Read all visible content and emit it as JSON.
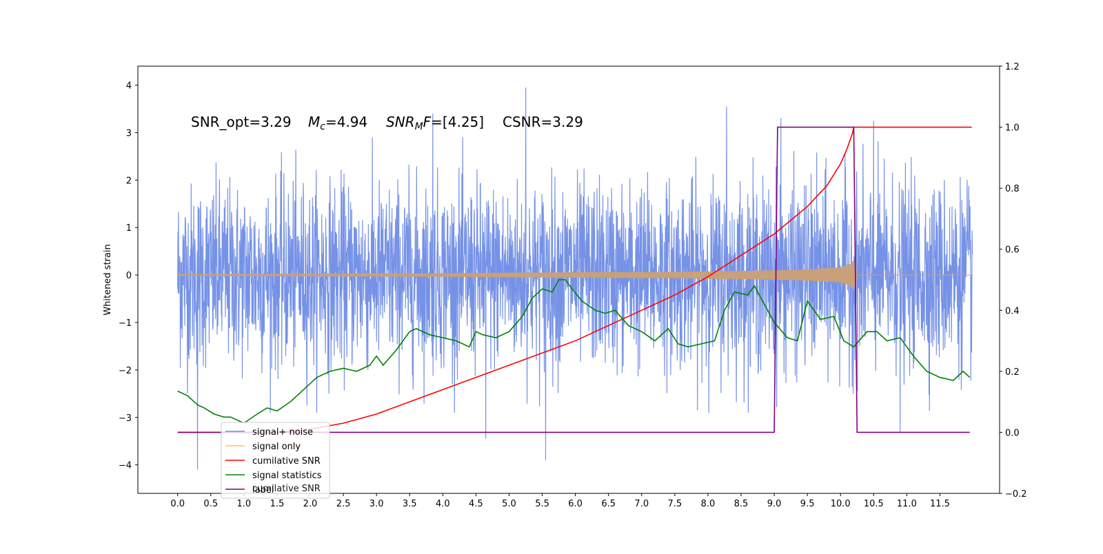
{
  "chart_data": {
    "type": "line",
    "annotation": {
      "snr_opt": "SNR_opt=3.29",
      "mc_symbol": "M",
      "mc_sub": "c",
      "mc_value": "=4.94",
      "snrmf_symbol": "SNR",
      "snrmf_sub": "M",
      "snrmf_symbol2": "F",
      "snrmf_value": "=[4.25]",
      "csnr": "CSNR=3.29"
    },
    "ylabel_left": "Whitened strain",
    "xlabel": "",
    "xlim": [
      -0.6,
      12.4
    ],
    "ylim_left": [
      -4.6,
      4.4
    ],
    "ylim_right": [
      -0.2,
      1.2
    ],
    "x_ticks": [
      "0.0",
      "0.5",
      "1.0",
      "1.5",
      "2.0",
      "2.5",
      "3.0",
      "3.5",
      "4.0",
      "4.5",
      "5.0",
      "5.5",
      "6.0",
      "6.5",
      "7.0",
      "7.5",
      "8.0",
      "8.5",
      "9.0",
      "9.5",
      "10.0",
      "10.5",
      "11.0",
      "11.5"
    ],
    "y_left_ticks": [
      "4",
      "3",
      "2",
      "1",
      "0",
      "−1",
      "−2",
      "−3",
      "−4"
    ],
    "y_right_ticks": [
      "1.2",
      "1.0",
      "0.8",
      "0.6",
      "0.4",
      "0.2",
      "0.0",
      "−0.2"
    ],
    "legend": {
      "position": "lower-left",
      "entries": [
        {
          "label": "signal+ noise",
          "color": "#6f8ce6"
        },
        {
          "label": "signal only",
          "color": "#ffc46b"
        },
        {
          "label": "cumilative SNR",
          "color": "#ff0000"
        },
        {
          "label": "signal statistics",
          "color": "#008000"
        },
        {
          "label": "label",
          "color": "#800080"
        }
      ],
      "overlapped_text": "cumilative SNR"
    },
    "series": [
      {
        "name": "signal+ noise",
        "axis": "left",
        "color": "#6f8ce6",
        "x": [
          0.0,
          11.99
        ],
        "envelope_min": [
          -4.1,
          -3.9
        ],
        "envelope_max": [
          3.95,
          3.3
        ],
        "note_values": "noise band approx between -2.5 and 2.5 with spikes up to 3.95 (x=5.25) and down to -4.1 (x=0.3)"
      },
      {
        "name": "signal only",
        "axis": "left",
        "color": "#c8a07a",
        "x": [
          0.0,
          2.0,
          4.0,
          6.0,
          7.5,
          8.5,
          9.0,
          9.5,
          10.0,
          10.15,
          10.2,
          10.25,
          12.0
        ],
        "amp": [
          0.01,
          0.02,
          0.03,
          0.05,
          0.06,
          0.08,
          0.09,
          0.11,
          0.15,
          0.22,
          0.3,
          0.0,
          0.0
        ]
      },
      {
        "name": "cumilative SNR",
        "axis": "right",
        "color": "#ff0000",
        "x": [
          0.0,
          1.0,
          1.5,
          2.0,
          2.5,
          3.0,
          3.5,
          4.0,
          4.5,
          5.0,
          5.5,
          6.0,
          6.5,
          7.0,
          7.5,
          8.0,
          8.5,
          9.0,
          9.5,
          9.8,
          10.0,
          10.1,
          10.18,
          10.2,
          11.98
        ],
        "values": [
          0.0,
          0.0,
          0.0,
          0.01,
          0.03,
          0.06,
          0.1,
          0.14,
          0.18,
          0.22,
          0.26,
          0.3,
          0.35,
          0.4,
          0.45,
          0.51,
          0.58,
          0.65,
          0.74,
          0.81,
          0.88,
          0.93,
          0.98,
          1.0,
          1.0
        ]
      },
      {
        "name": "signal statistics",
        "axis": "right",
        "color": "#008000",
        "x": [
          0.0,
          0.15,
          0.3,
          0.4,
          0.55,
          0.7,
          0.8,
          1.0,
          1.2,
          1.35,
          1.5,
          1.7,
          1.9,
          2.1,
          2.3,
          2.5,
          2.7,
          2.9,
          3.0,
          3.1,
          3.3,
          3.5,
          3.6,
          3.8,
          4.0,
          4.2,
          4.4,
          4.5,
          4.6,
          4.8,
          5.0,
          5.2,
          5.35,
          5.5,
          5.65,
          5.75,
          5.85,
          5.95,
          6.1,
          6.3,
          6.45,
          6.6,
          6.8,
          7.0,
          7.2,
          7.4,
          7.55,
          7.7,
          7.9,
          8.1,
          8.25,
          8.4,
          8.6,
          8.7,
          8.85,
          9.0,
          9.2,
          9.35,
          9.5,
          9.7,
          9.9,
          10.05,
          10.2,
          10.4,
          10.55,
          10.7,
          10.9,
          11.1,
          11.3,
          11.5,
          11.7,
          11.85,
          11.95
        ],
        "values": [
          0.135,
          0.12,
          0.09,
          0.08,
          0.06,
          0.05,
          0.05,
          0.03,
          0.06,
          0.08,
          0.07,
          0.1,
          0.14,
          0.18,
          0.2,
          0.21,
          0.2,
          0.22,
          0.25,
          0.22,
          0.27,
          0.33,
          0.34,
          0.32,
          0.31,
          0.3,
          0.28,
          0.33,
          0.32,
          0.31,
          0.33,
          0.38,
          0.44,
          0.47,
          0.46,
          0.5,
          0.5,
          0.47,
          0.43,
          0.4,
          0.39,
          0.4,
          0.35,
          0.33,
          0.3,
          0.34,
          0.29,
          0.28,
          0.29,
          0.3,
          0.4,
          0.46,
          0.45,
          0.48,
          0.42,
          0.36,
          0.31,
          0.3,
          0.43,
          0.37,
          0.38,
          0.3,
          0.28,
          0.33,
          0.33,
          0.3,
          0.31,
          0.25,
          0.2,
          0.18,
          0.17,
          0.2,
          0.18
        ]
      },
      {
        "name": "label",
        "axis": "right",
        "color": "#800080",
        "x": [
          0.0,
          9.0,
          9.05,
          10.2,
          10.25,
          11.95
        ],
        "values": [
          0.0,
          0.0,
          1.0,
          1.0,
          0.0,
          0.0
        ]
      }
    ],
    "grid": false
  }
}
